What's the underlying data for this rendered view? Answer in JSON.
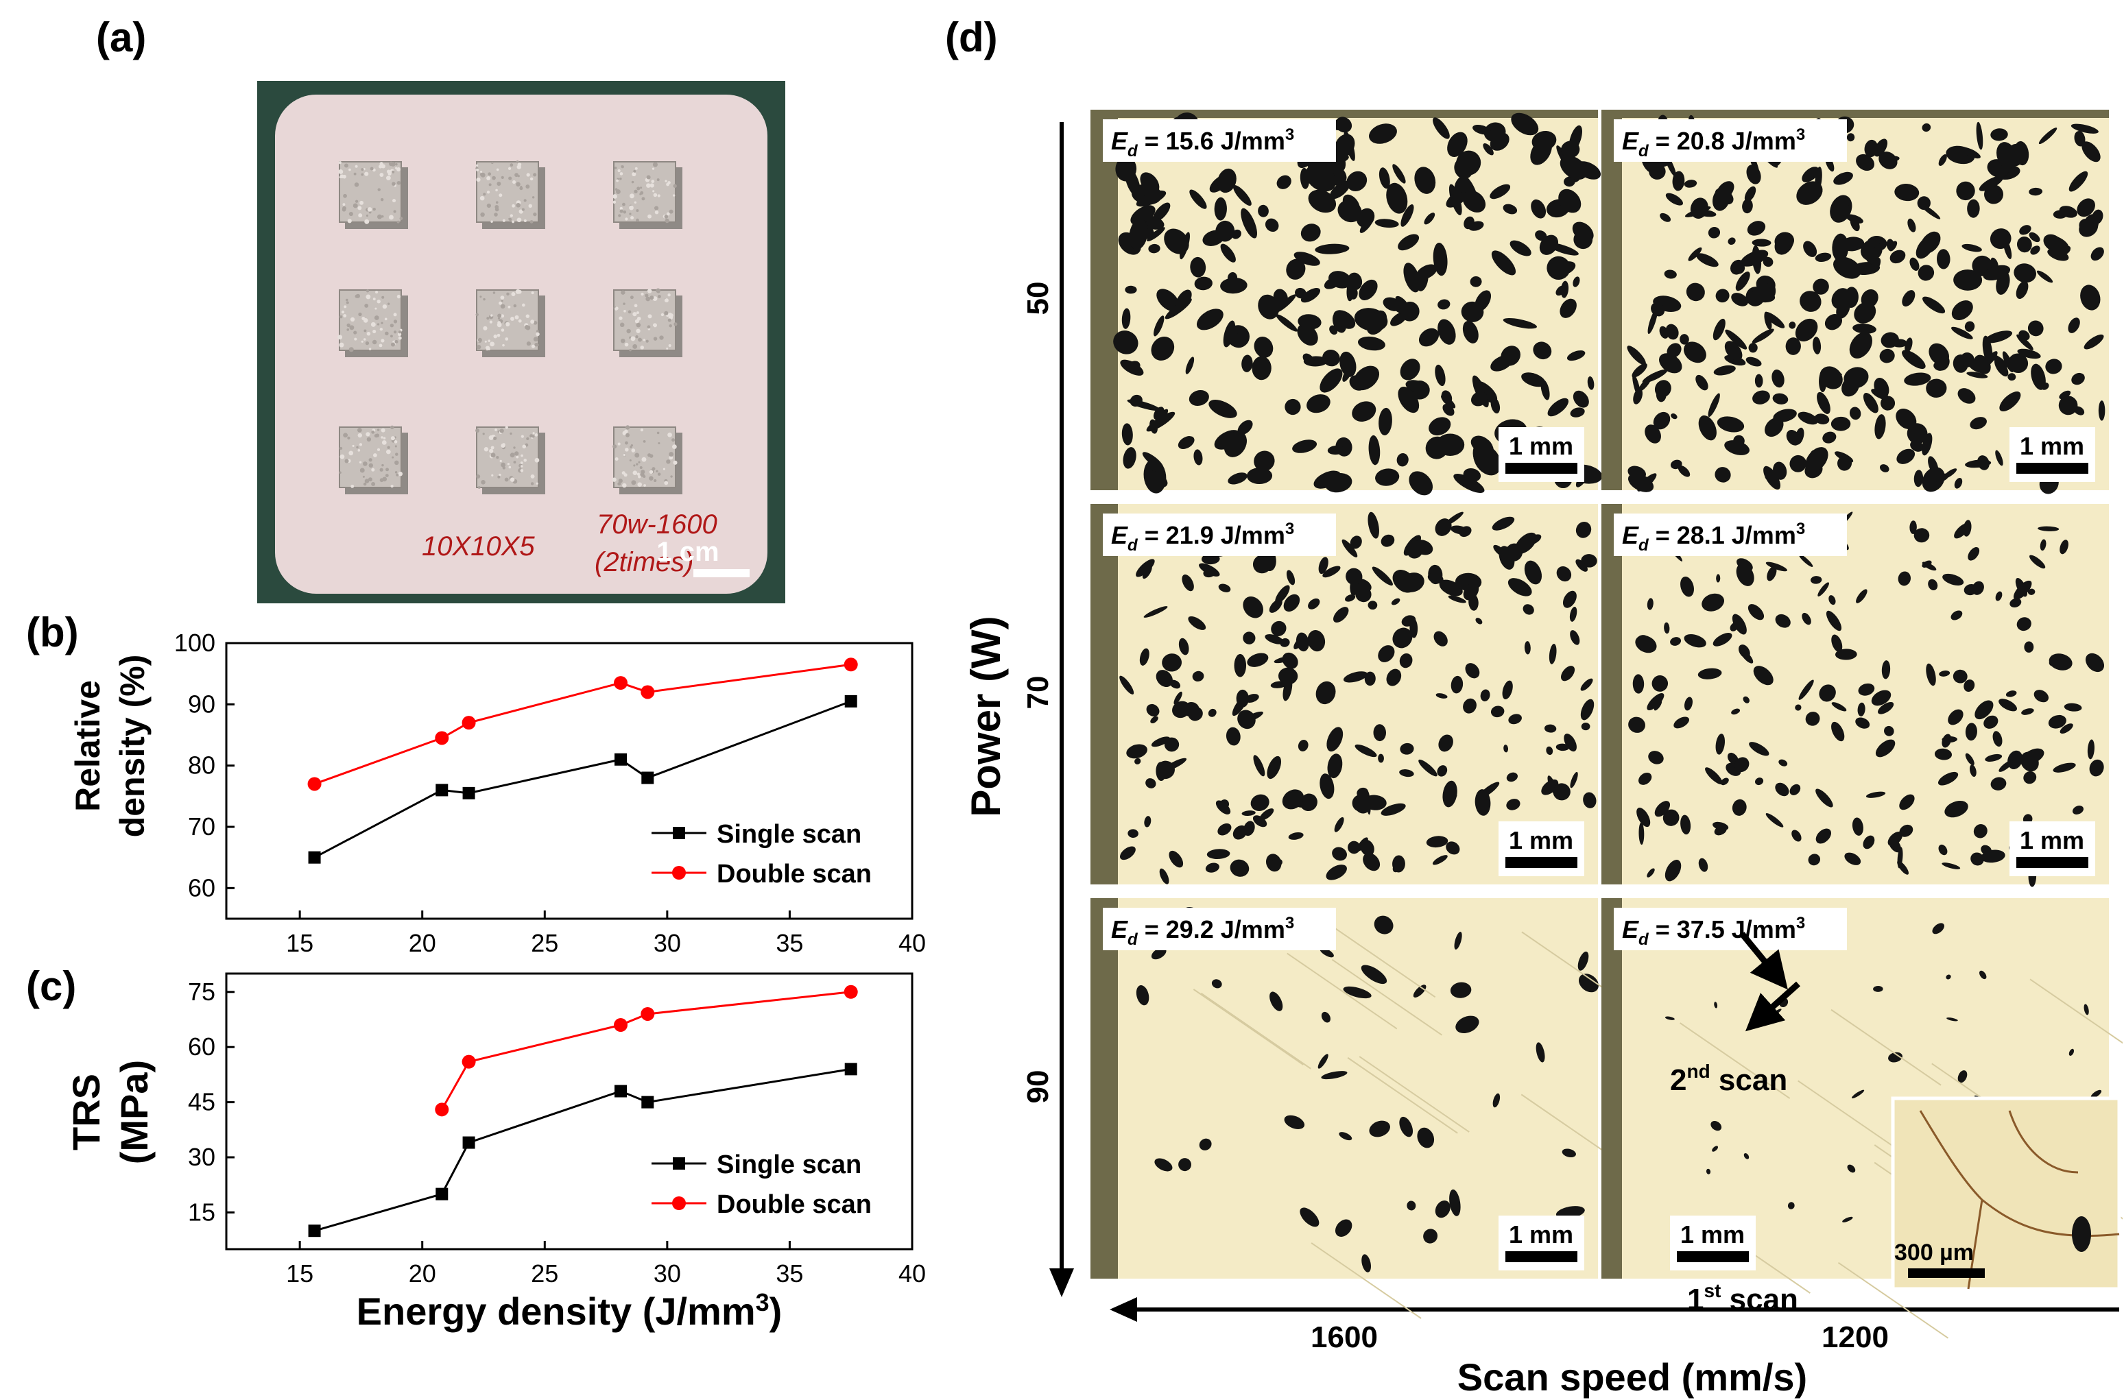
{
  "panels": {
    "a": {
      "label": "(a)",
      "scale_bar": "1 cm",
      "handwriting_left": "10X10X5",
      "handwriting_right_1": "70w-1600",
      "handwriting_right_2": "(2times)"
    },
    "b": {
      "label": "(b)"
    },
    "c": {
      "label": "(c)"
    },
    "d": {
      "label": "(d)",
      "y_axis_label": "Power (W)",
      "x_axis_label": "Scan speed (mm/s)",
      "power_levels": [
        "50",
        "70",
        "90"
      ],
      "speed_levels": [
        "1600",
        "1200"
      ],
      "ed_prefix": "E",
      "ed_sub": "d",
      "ed_values": [
        "15.6",
        "20.8",
        "21.9",
        "28.1",
        "29.2",
        "37.5"
      ],
      "ed_unit": "J/mm",
      "ed_unit_sup": "3",
      "scale_bar": "1 mm",
      "inset_scale_bar": "300 µm",
      "scan1_label": "1",
      "scan1_sup": "st",
      "scan1_rest": " scan",
      "scan2_label": "2",
      "scan2_sup": "nd",
      "scan2_rest": " scan"
    }
  },
  "colors": {
    "single": "#000000",
    "double": "#ff0000",
    "micro_bg": "#f4ebc6",
    "pore": "#141414",
    "mount": "#6e6a4a",
    "plate": "#e8d7d7",
    "photo_bg": "#2b4a3e"
  },
  "chart_data": [
    {
      "type": "line",
      "panel": "(b)",
      "title": "",
      "xlabel": "",
      "ylabel_line1": "Relative",
      "ylabel_line2": "density (%)",
      "xlim": [
        12,
        40
      ],
      "ylim": [
        55,
        100
      ],
      "xticks": [
        15,
        20,
        25,
        30,
        35,
        40
      ],
      "yticks": [
        60,
        70,
        80,
        90,
        100
      ],
      "legend": "bottom-right",
      "series": [
        {
          "name": "Single scan",
          "marker": "square",
          "x": [
            15.6,
            20.8,
            21.9,
            28.1,
            29.2,
            37.5
          ],
          "y": [
            65,
            76,
            75.5,
            81,
            78,
            90.5
          ]
        },
        {
          "name": "Double scan",
          "marker": "circle",
          "x": [
            15.6,
            20.8,
            21.9,
            28.1,
            29.2,
            37.5
          ],
          "y": [
            77,
            84.5,
            87,
            93.5,
            92,
            96.5
          ]
        }
      ]
    },
    {
      "type": "line",
      "panel": "(c)",
      "title": "",
      "xlabel": "Energy density (J/mm",
      "xlabel_sup": "3",
      "xlabel_end": ")",
      "ylabel_line1": "TRS",
      "ylabel_line2": "(MPa)",
      "xlim": [
        12,
        40
      ],
      "ylim": [
        5,
        80
      ],
      "xticks": [
        15,
        20,
        25,
        30,
        35,
        40
      ],
      "yticks": [
        15,
        30,
        45,
        60,
        75
      ],
      "legend": "bottom-right",
      "series": [
        {
          "name": "Single scan",
          "marker": "square",
          "x": [
            15.6,
            20.8,
            21.9,
            28.1,
            29.2,
            37.5
          ],
          "y": [
            10,
            20,
            34,
            48,
            45,
            54
          ]
        },
        {
          "name": "Double scan",
          "marker": "circle",
          "x": [
            20.8,
            21.9,
            28.1,
            29.2,
            37.5
          ],
          "y": [
            43,
            56,
            66,
            69,
            75
          ]
        }
      ]
    }
  ]
}
